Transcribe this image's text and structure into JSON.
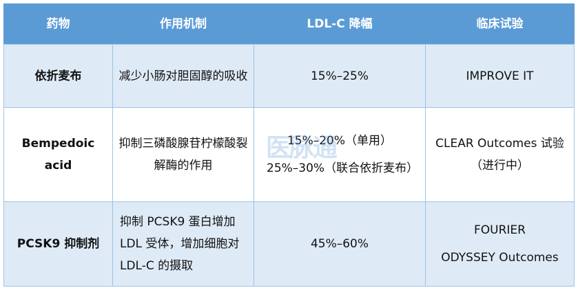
{
  "headers": [
    "药物",
    "作用机制",
    "LDL-C 降幅",
    "临床试验"
  ],
  "rows": [
    {
      "drug": "依折麦布",
      "mechanism": "减少小肠对胆固醇的吸收",
      "ldl": [
        "15%–25%"
      ],
      "trials": [
        "IMPROVE IT"
      ]
    },
    {
      "drug": "Bempedoic acid",
      "mechanism": "抑制三磷酸腺苷柠檬酸裂解酶的作用",
      "ldl": [
        "15%–20%（单用）",
        "25%–30%（联合依折麦布）"
      ],
      "trials": [
        "CLEAR Outcomes 试验（进行中）"
      ]
    },
    {
      "drug": "PCSK9 抑制剂",
      "mechanism": "抑制 PCSK9 蛋白增加 LDL 受体，增加细胞对 LDL-C 的摄取",
      "ldl": [
        "45%–60%"
      ],
      "trials": [
        "FOURIER",
        "ODYSSEY Outcomes"
      ]
    }
  ],
  "watermark": "医脉通",
  "colors": {
    "header": "#5b9bd5",
    "alt_row": "#deeaf6",
    "border": "#9dc3e6"
  }
}
